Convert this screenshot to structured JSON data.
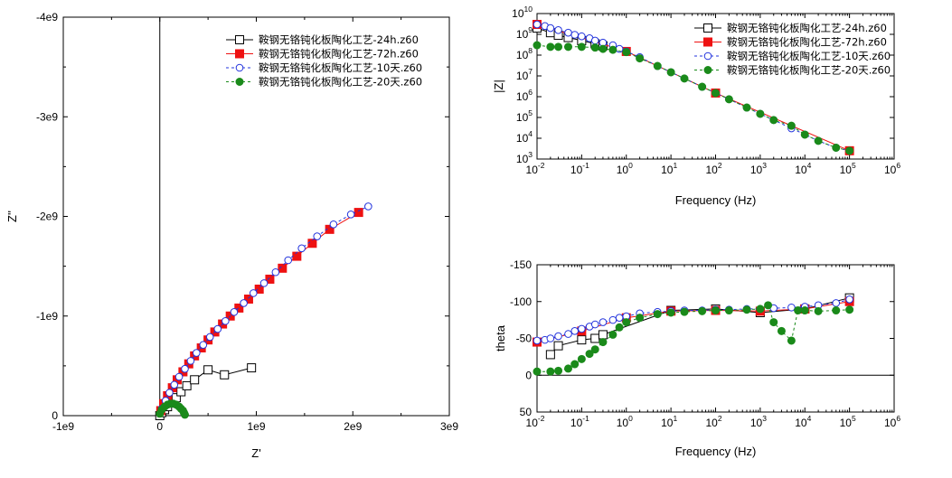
{
  "chart_data": [
    {
      "id": "nyquist",
      "type": "scatter",
      "xlabel": "Z'",
      "ylabel": "Z''",
      "xlim": [
        -1000000000.0,
        3000000000.0
      ],
      "ylim": [
        0,
        -4000000000.0
      ],
      "y_inverted": true,
      "x_ticks": [
        {
          "v": -1000000000.0,
          "label": "-1e9"
        },
        {
          "v": 0,
          "label": "0"
        },
        {
          "v": 1000000000.0,
          "label": "1e9"
        },
        {
          "v": 2000000000.0,
          "label": "2e9"
        },
        {
          "v": 3000000000.0,
          "label": "3e9"
        }
      ],
      "y_ticks": [
        {
          "v": 0,
          "label": "0"
        },
        {
          "v": -1000000000.0,
          "label": "-1e9"
        },
        {
          "v": -2000000000.0,
          "label": "-2e9"
        },
        {
          "v": -3000000000.0,
          "label": "-3e9"
        },
        {
          "v": -4000000000.0,
          "label": "-4e9"
        }
      ],
      "legend_position": "top-right",
      "series": [
        {
          "name": "鞍钢无铬钝化板陶化工艺-24h.z60",
          "color": "#000000",
          "marker": "open-square",
          "line": "solid",
          "x": [
            0.0,
            20000000.0,
            50000000.0,
            80000000.0,
            120000000.0,
            170000000.0,
            220000000.0,
            280000000.0,
            360000000.0,
            500000000.0,
            670000000.0,
            950000000.0
          ],
          "y": [
            0.0,
            -30000000.0,
            -60000000.0,
            -90000000.0,
            -130000000.0,
            -180000000.0,
            -240000000.0,
            -300000000.0,
            -360000000.0,
            -460000000.0,
            -410000000.0,
            -480000000.0
          ]
        },
        {
          "name": "鞍钢无铬钝化板陶化工艺-72h.z60",
          "color": "#ee1111",
          "marker": "filled-square",
          "line": "solid",
          "x": [
            10000000.0,
            40000000.0,
            80000000.0,
            130000000.0,
            180000000.0,
            240000000.0,
            300000000.0,
            360000000.0,
            430000000.0,
            500000000.0,
            570000000.0,
            650000000.0,
            730000000.0,
            820000000.0,
            920000000.0,
            1030000000.0,
            1140000000.0,
            1270000000.0,
            1420000000.0,
            1580000000.0,
            1760000000.0,
            2060000000.0
          ],
          "y": [
            -50000000.0,
            -120000000.0,
            -200000000.0,
            -280000000.0,
            -360000000.0,
            -440000000.0,
            -520000000.0,
            -600000000.0,
            -680000000.0,
            -760000000.0,
            -840000000.0,
            -920000000.0,
            -1000000000.0,
            -1080000000.0,
            -1170000000.0,
            -1270000000.0,
            -1370000000.0,
            -1480000000.0,
            -1600000000.0,
            -1730000000.0,
            -1870000000.0,
            -2040000000.0
          ]
        },
        {
          "name": "鞍钢无铬钝化板陶化工艺-10天.z60",
          "color": "#2233dd",
          "marker": "open-circle",
          "line": "dash",
          "x": [
            20000000.0,
            60000000.0,
            100000000.0,
            150000000.0,
            200000000.0,
            260000000.0,
            320000000.0,
            380000000.0,
            450000000.0,
            520000000.0,
            600000000.0,
            680000000.0,
            770000000.0,
            870000000.0,
            970000000.0,
            1080000000.0,
            1200000000.0,
            1330000000.0,
            1470000000.0,
            1630000000.0,
            1800000000.0,
            1980000000.0,
            2160000000.0
          ],
          "y": [
            -70000000.0,
            -150000000.0,
            -230000000.0,
            -310000000.0,
            -390000000.0,
            -470000000.0,
            -550000000.0,
            -630000000.0,
            -710000000.0,
            -790000000.0,
            -870000000.0,
            -950000000.0,
            -1040000000.0,
            -1130000000.0,
            -1230000000.0,
            -1330000000.0,
            -1440000000.0,
            -1560000000.0,
            -1680000000.0,
            -1800000000.0,
            -1920000000.0,
            -2020000000.0,
            -2100000000.0
          ]
        },
        {
          "name": "鞍钢无铬钝化板陶化工艺-20天.z60",
          "color": "#1a8a1a",
          "marker": "filled-circle",
          "line": "dash",
          "x": [
            0.0,
            20000000.0,
            50000000.0,
            80000000.0,
            110000000.0,
            140000000.0,
            170000000.0,
            200000000.0,
            220000000.0,
            240000000.0,
            250000000.0,
            260000000.0
          ],
          "y": [
            -20000000.0,
            -60000000.0,
            -90000000.0,
            -110000000.0,
            -120000000.0,
            -120000000.0,
            -110000000.0,
            -90000000.0,
            -70000000.0,
            -50000000.0,
            -30000000.0,
            -10000000.0
          ]
        }
      ]
    },
    {
      "id": "bode-magnitude",
      "type": "line",
      "xlabel": "Frequency (Hz)",
      "ylabel": "|Z|",
      "x_scale": "log",
      "y_scale": "log",
      "xlim": [
        0.01,
        1000000
      ],
      "ylim": [
        1000,
        10000000000
      ],
      "x_ticks": [
        {
          "v": 0.01,
          "m": "10",
          "e": "-2"
        },
        {
          "v": 0.1,
          "m": "10",
          "e": "-1"
        },
        {
          "v": 1,
          "m": "10",
          "e": "0"
        },
        {
          "v": 10,
          "m": "10",
          "e": "1"
        },
        {
          "v": 100,
          "m": "10",
          "e": "2"
        },
        {
          "v": 1000,
          "m": "10",
          "e": "3"
        },
        {
          "v": 10000,
          "m": "10",
          "e": "4"
        },
        {
          "v": 100000,
          "m": "10",
          "e": "5"
        },
        {
          "v": 1000000,
          "m": "10",
          "e": "6"
        }
      ],
      "y_ticks": [
        {
          "v": 1000,
          "m": "10",
          "e": "3"
        },
        {
          "v": 10000,
          "m": "10",
          "e": "4"
        },
        {
          "v": 100000,
          "m": "10",
          "e": "5"
        },
        {
          "v": 1000000,
          "m": "10",
          "e": "6"
        },
        {
          "v": 10000000,
          "m": "10",
          "e": "7"
        },
        {
          "v": 100000000,
          "m": "10",
          "e": "8"
        },
        {
          "v": 1000000000,
          "m": "10",
          "e": "9"
        },
        {
          "v": 10000000000,
          "m": "10",
          "e": "10"
        }
      ],
      "legend_position": "top-right",
      "series": [
        {
          "name": "鞍钢无铬钝化板陶化工艺-24h.z60",
          "color": "#000000",
          "marker": "open-square",
          "line": "solid",
          "x": [
            0.01,
            0.02,
            0.03,
            0.05,
            0.1,
            0.2,
            0.3
          ],
          "y": [
            2000000000,
            1200000000,
            900000000,
            700000000,
            500000000,
            350000000,
            280000000
          ]
        },
        {
          "name": "鞍钢无铬钝化板陶化工艺-72h.z60",
          "color": "#ee1111",
          "marker": "filled-square",
          "line": "solid",
          "x": [
            0.01,
            1,
            100,
            100000
          ],
          "y": [
            3000000000,
            150000000,
            1500000,
            2500
          ]
        },
        {
          "name": "鞍钢无铬钝化板陶化工艺-10天.z60",
          "color": "#2233dd",
          "marker": "open-circle",
          "line": "dash",
          "x": [
            0.01,
            0.015,
            0.02,
            0.03,
            0.05,
            0.07,
            0.1,
            0.15,
            0.2,
            0.3,
            0.5,
            0.7,
            1,
            2,
            5,
            10,
            20,
            50,
            100,
            200,
            500,
            1000,
            2000,
            5000,
            10000,
            20000,
            50000,
            100000
          ],
          "y": [
            3000000000,
            2500000000,
            2000000000,
            1600000000,
            1200000000,
            950000000,
            800000000,
            650000000,
            500000000,
            400000000,
            300000000,
            200000000,
            150000000,
            80000000,
            30000000,
            15000000,
            7500000,
            3000000,
            1500000,
            750000,
            300000,
            150000,
            75000,
            30000,
            15000,
            7500,
            3500,
            2500
          ]
        },
        {
          "name": "鞍钢无铬钝化板陶化工艺-20天.z60",
          "color": "#1a8a1a",
          "marker": "filled-circle",
          "line": "dash",
          "x": [
            0.01,
            0.02,
            0.03,
            0.05,
            0.1,
            0.2,
            0.3,
            0.5,
            1,
            2,
            5,
            10,
            20,
            50,
            100,
            200,
            500,
            1000,
            2000,
            5000,
            10000,
            20000,
            50000,
            100000
          ],
          "y": [
            300000000,
            250000000,
            250000000,
            250000000,
            250000000,
            230000000,
            200000000,
            180000000,
            140000000,
            70000000,
            30000000,
            15000000,
            7500000,
            3000000,
            1500000,
            750000,
            300000,
            150000,
            75000,
            40000,
            15000,
            7500,
            3500,
            2500
          ]
        }
      ]
    },
    {
      "id": "bode-phase",
      "type": "line",
      "xlabel": "Frequency (Hz)",
      "ylabel": "theta",
      "x_scale": "log",
      "xlim": [
        0.01,
        1000000
      ],
      "ylim": [
        50,
        -150
      ],
      "y_inverted": true,
      "x_ticks": [
        {
          "v": 0.01,
          "m": "10",
          "e": "-2"
        },
        {
          "v": 0.1,
          "m": "10",
          "e": "-1"
        },
        {
          "v": 1,
          "m": "10",
          "e": "0"
        },
        {
          "v": 10,
          "m": "10",
          "e": "1"
        },
        {
          "v": 100,
          "m": "10",
          "e": "2"
        },
        {
          "v": 1000,
          "m": "10",
          "e": "3"
        },
        {
          "v": 10000,
          "m": "10",
          "e": "4"
        },
        {
          "v": 100000,
          "m": "10",
          "e": "5"
        },
        {
          "v": 1000000,
          "m": "10",
          "e": "6"
        }
      ],
      "y_ticks": [
        {
          "v": -150,
          "label": "-150"
        },
        {
          "v": -100,
          "label": "-100"
        },
        {
          "v": -50,
          "label": "-50"
        },
        {
          "v": 0,
          "label": "0"
        },
        {
          "v": 50,
          "label": "50"
        }
      ],
      "series": [
        {
          "name": "鞍钢无铬钝化板陶化工艺-24h.z60",
          "color": "#000000",
          "marker": "open-square",
          "line": "solid",
          "x": [
            0.02,
            0.03,
            0.1,
            0.2,
            0.3,
            10,
            100,
            1000,
            10000,
            100000
          ],
          "y": [
            -28,
            -40,
            -48,
            -50,
            -55,
            -88,
            -90,
            -85,
            -90,
            -105
          ]
        },
        {
          "name": "鞍钢无铬钝化板陶化工艺-72h.z60",
          "color": "#ee1111",
          "marker": "filled-square",
          "line": "solid",
          "x": [
            0.01,
            0.1,
            1,
            10,
            100,
            1000,
            10000,
            100000
          ],
          "y": [
            -45,
            -60,
            -78,
            -87,
            -88,
            -87,
            -90,
            -100
          ]
        },
        {
          "name": "鞍钢无铬钝化板陶化工艺-10天.z60",
          "color": "#2233dd",
          "marker": "open-circle",
          "line": "dash",
          "x": [
            0.01,
            0.015,
            0.02,
            0.03,
            0.05,
            0.07,
            0.1,
            0.15,
            0.2,
            0.3,
            0.5,
            0.7,
            1,
            2,
            5,
            10,
            20,
            50,
            100,
            200,
            500,
            1000,
            2000,
            5000,
            10000,
            20000,
            50000,
            100000
          ],
          "y": [
            -47,
            -48,
            -50,
            -53,
            -56,
            -60,
            -63,
            -66,
            -69,
            -72,
            -75,
            -78,
            -80,
            -84,
            -86,
            -87,
            -88,
            -88,
            -89,
            -89,
            -90,
            -90,
            -91,
            -92,
            -93,
            -95,
            -98,
            -103
          ]
        },
        {
          "name": "鞍钢无铬钝化板陶化工艺-20天.z60",
          "color": "#1a8a1a",
          "marker": "filled-circle",
          "line": "dash",
          "x": [
            0.01,
            0.02,
            0.03,
            0.05,
            0.07,
            0.1,
            0.15,
            0.2,
            0.3,
            0.5,
            0.7,
            1,
            2,
            5,
            10,
            20,
            50,
            100,
            200,
            500,
            1000,
            1500,
            2000,
            3000,
            5000,
            7000,
            10000,
            20000,
            50000,
            100000
          ],
          "y": [
            -5,
            -5,
            -6,
            -9,
            -15,
            -22,
            -29,
            -35,
            -45,
            -55,
            -65,
            -72,
            -78,
            -83,
            -85,
            -86,
            -87,
            -88,
            -88,
            -89,
            -90,
            -95,
            -72,
            -60,
            -47,
            -88,
            -88,
            -87,
            -88,
            -89
          ]
        }
      ]
    }
  ]
}
